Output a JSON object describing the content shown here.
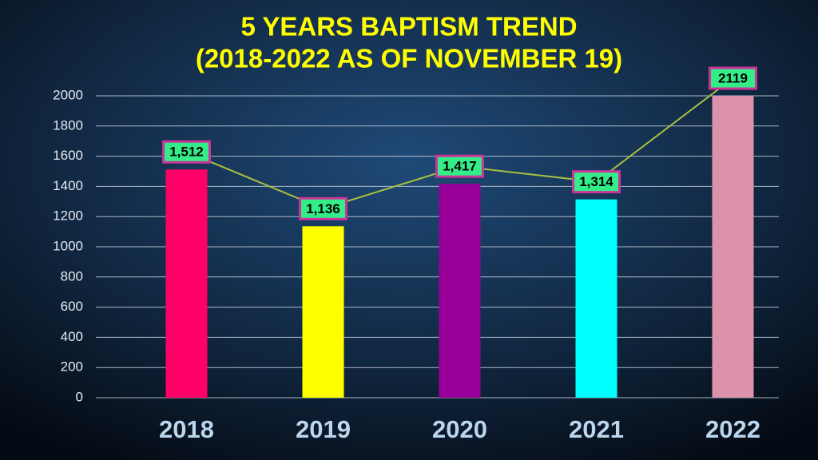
{
  "chart_data": {
    "type": "bar",
    "title": [
      "5 YEARS BAPTISM TREND",
      "(2018-2022 AS OF NOVEMBER 19)"
    ],
    "categories": [
      "2018",
      "2019",
      "2020",
      "2021",
      "2022"
    ],
    "values": [
      1512,
      1136,
      1417,
      1314,
      2119
    ],
    "value_labels": [
      "1,512",
      "1,136",
      "1,417",
      "1,314",
      "2119"
    ],
    "colors": [
      "#ff0066",
      "#ffff00",
      "#990099",
      "#00ffff",
      "#dc92aa"
    ],
    "ylim": [
      0,
      2000
    ],
    "yticks": [
      0,
      200,
      400,
      600,
      800,
      1000,
      1200,
      1400,
      1600,
      1800,
      2000
    ],
    "grid": true
  }
}
